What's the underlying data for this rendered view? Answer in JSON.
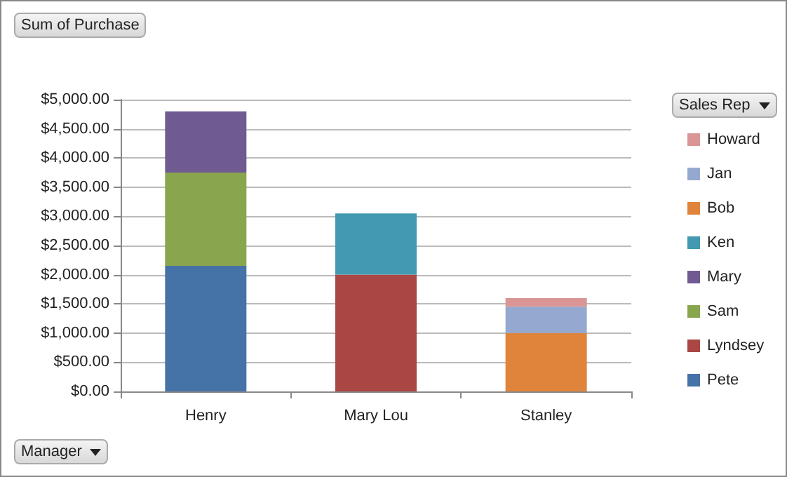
{
  "chart_data": {
    "type": "bar",
    "stacked": true,
    "title": "Sum of Purchase",
    "xlabel": "Manager",
    "legend_title": "Sales Rep",
    "legend": "right",
    "grid": "y",
    "categories": [
      "Henry",
      "Mary Lou",
      "Stanley"
    ],
    "ylim": [
      0,
      5000
    ],
    "yticks": [
      {
        "value": 0,
        "label": "$0.00"
      },
      {
        "value": 500,
        "label": "$500.00"
      },
      {
        "value": 1000,
        "label": "$1,000.00"
      },
      {
        "value": 1500,
        "label": "$1,500.00"
      },
      {
        "value": 2000,
        "label": "$2,000.00"
      },
      {
        "value": 2500,
        "label": "$2,500.00"
      },
      {
        "value": 3000,
        "label": "$3,000.00"
      },
      {
        "value": 3500,
        "label": "$3,500.00"
      },
      {
        "value": 4000,
        "label": "$4,000.00"
      },
      {
        "value": 4500,
        "label": "$4,500.00"
      },
      {
        "value": 5000,
        "label": "$5,000.00"
      }
    ],
    "series": [
      {
        "name": "Pete",
        "color": "#4572a7",
        "values": [
          2150,
          null,
          null
        ]
      },
      {
        "name": "Lyndsey",
        "color": "#aa4643",
        "values": [
          null,
          2000,
          null
        ]
      },
      {
        "name": "Sam",
        "color": "#89a54e",
        "values": [
          1600,
          null,
          null
        ]
      },
      {
        "name": "Mary",
        "color": "#705a92",
        "values": [
          1050,
          null,
          null
        ]
      },
      {
        "name": "Ken",
        "color": "#4399b1",
        "values": [
          null,
          1050,
          null
        ]
      },
      {
        "name": "Bob",
        "color": "#e0843c",
        "values": [
          null,
          null,
          1000
        ]
      },
      {
        "name": "Jan",
        "color": "#95a9d0",
        "values": [
          null,
          null,
          450
        ]
      },
      {
        "name": "Howard",
        "color": "#d99694",
        "values": [
          null,
          null,
          150
        ]
      }
    ]
  }
}
